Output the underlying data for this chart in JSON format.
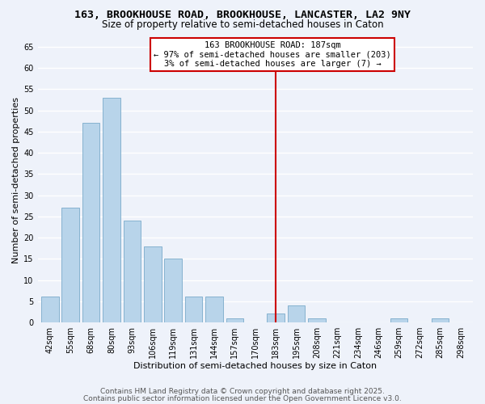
{
  "title": "163, BROOKHOUSE ROAD, BROOKHOUSE, LANCASTER, LA2 9NY",
  "subtitle": "Size of property relative to semi-detached houses in Caton",
  "xlabel": "Distribution of semi-detached houses by size in Caton",
  "ylabel": "Number of semi-detached properties",
  "bar_labels": [
    "42sqm",
    "55sqm",
    "68sqm",
    "80sqm",
    "93sqm",
    "106sqm",
    "119sqm",
    "131sqm",
    "144sqm",
    "157sqm",
    "170sqm",
    "183sqm",
    "195sqm",
    "208sqm",
    "221sqm",
    "234sqm",
    "246sqm",
    "259sqm",
    "272sqm",
    "285sqm",
    "298sqm"
  ],
  "bar_heights": [
    6,
    27,
    47,
    53,
    24,
    18,
    15,
    6,
    6,
    1,
    0,
    2,
    4,
    1,
    0,
    0,
    0,
    1,
    0,
    1,
    0
  ],
  "bar_color": "#b8d4ea",
  "bar_edge_color": "#7aaaca",
  "vline_x_index": 11,
  "vline_color": "#cc0000",
  "annotation_title": "163 BROOKHOUSE ROAD: 187sqm",
  "annotation_line1": "← 97% of semi-detached houses are smaller (203)",
  "annotation_line2": "3% of semi-detached houses are larger (7) →",
  "annotation_box_color": "#ffffff",
  "annotation_box_edge": "#cc0000",
  "ylim": [
    0,
    67
  ],
  "yticks": [
    0,
    5,
    10,
    15,
    20,
    25,
    30,
    35,
    40,
    45,
    50,
    55,
    60,
    65
  ],
  "footnote1": "Contains HM Land Registry data © Crown copyright and database right 2025.",
  "footnote2": "Contains public sector information licensed under the Open Government Licence v3.0.",
  "background_color": "#eef2fa",
  "grid_color": "#ffffff",
  "title_fontsize": 9.5,
  "subtitle_fontsize": 8.5,
  "axis_label_fontsize": 8,
  "tick_fontsize": 7,
  "annotation_fontsize": 7.5,
  "footnote_fontsize": 6.5
}
